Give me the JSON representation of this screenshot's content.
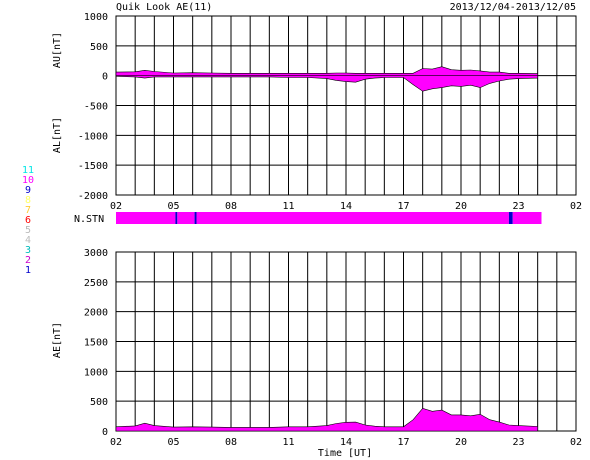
{
  "header": {
    "title": "Quik Look AE(11)",
    "date_range": "2013/12/04-2013/12/05"
  },
  "station_legend": {
    "label": "N.STN",
    "levels": [
      {
        "value": "11",
        "color": "#00e5e5"
      },
      {
        "value": "10",
        "color": "#ff00ff"
      },
      {
        "value": "9",
        "color": "#0000cc"
      },
      {
        "value": "8",
        "color": "#ffff66"
      },
      {
        "value": "7",
        "color": "#ffcc33"
      },
      {
        "value": "6",
        "color": "#ff0000"
      },
      {
        "value": "5",
        "color": "#bbbbbb"
      },
      {
        "value": "4",
        "color": "#bbbbbb"
      },
      {
        "value": "3",
        "color": "#00bbbb"
      },
      {
        "value": "2",
        "color": "#cc00cc"
      },
      {
        "value": "1",
        "color": "#0000cc"
      }
    ]
  },
  "chart_data": [
    {
      "type": "area",
      "xlabel": "",
      "ylabel_top": "AU[nT]",
      "ylabel_bottom": "AL[nT]",
      "ylim": [
        -2000,
        1000
      ],
      "yticks": [
        "1000",
        "500",
        "0",
        "-500",
        "-1000",
        "-1500",
        "-2000"
      ],
      "xlim_hours": [
        2,
        26
      ],
      "xtick_labels": [
        "02",
        "05",
        "08",
        "11",
        "14",
        "17",
        "20",
        "23",
        "02"
      ],
      "grid": true,
      "fill_color": "#ff00ff",
      "series": [
        {
          "hours": [
            2,
            3,
            3.5,
            4,
            5,
            6,
            7,
            8,
            9,
            10,
            11,
            12,
            13,
            13.5,
            14,
            14.5,
            15,
            15.5,
            16,
            16.5,
            17,
            17.5,
            18,
            18.5,
            19,
            19.5,
            20,
            20.5,
            21,
            21.5,
            22,
            22.5,
            23,
            24
          ],
          "au": [
            60,
            65,
            90,
            70,
            45,
            50,
            45,
            40,
            40,
            40,
            40,
            40,
            40,
            45,
            45,
            40,
            40,
            40,
            40,
            40,
            40,
            40,
            120,
            110,
            150,
            100,
            90,
            95,
            80,
            60,
            60,
            40,
            40,
            35
          ],
          "al": [
            -10,
            -20,
            -40,
            -20,
            -20,
            -20,
            -20,
            -20,
            -20,
            -20,
            -30,
            -30,
            -50,
            -80,
            -100,
            -110,
            -60,
            -40,
            -30,
            -30,
            -30,
            -150,
            -260,
            -220,
            -200,
            -170,
            -180,
            -160,
            -200,
            -130,
            -90,
            -60,
            -50,
            -40
          ]
        }
      ]
    },
    {
      "type": "bar",
      "label": "N.STN",
      "xlim_hours": [
        2,
        26
      ],
      "segments": [
        {
          "start": 2,
          "end": 5.1,
          "value": 10
        },
        {
          "start": 5.1,
          "end": 5.2,
          "value": 9
        },
        {
          "start": 5.2,
          "end": 6.1,
          "value": 10
        },
        {
          "start": 6.1,
          "end": 6.2,
          "value": 9
        },
        {
          "start": 6.2,
          "end": 22.5,
          "value": 10
        },
        {
          "start": 22.5,
          "end": 22.7,
          "value": 9
        },
        {
          "start": 22.7,
          "end": 24.2,
          "value": 10
        }
      ]
    },
    {
      "type": "area",
      "xlabel": "Time [UT]",
      "ylabel": "AE[nT]",
      "ylim": [
        0,
        3000
      ],
      "yticks": [
        "3000",
        "2500",
        "2000",
        "1500",
        "1000",
        "500",
        "0"
      ],
      "xlim_hours": [
        2,
        26
      ],
      "xtick_labels": [
        "02",
        "05",
        "08",
        "11",
        "14",
        "17",
        "20",
        "23",
        "02"
      ],
      "grid": true,
      "fill_color": "#ff00ff",
      "series": [
        {
          "hours": [
            2,
            3,
            3.5,
            4,
            5,
            6,
            7,
            8,
            9,
            10,
            11,
            12,
            13,
            13.5,
            14,
            14.5,
            15,
            15.5,
            16,
            16.5,
            17,
            17.5,
            18,
            18.5,
            19,
            19.5,
            20,
            20.5,
            21,
            21.5,
            22,
            22.5,
            23,
            24
          ],
          "values": [
            70,
            85,
            130,
            90,
            65,
            70,
            65,
            60,
            60,
            60,
            70,
            70,
            90,
            125,
            145,
            150,
            100,
            80,
            70,
            70,
            70,
            190,
            380,
            330,
            350,
            270,
            270,
            255,
            280,
            190,
            150,
            100,
            90,
            75
          ]
        }
      ]
    }
  ]
}
